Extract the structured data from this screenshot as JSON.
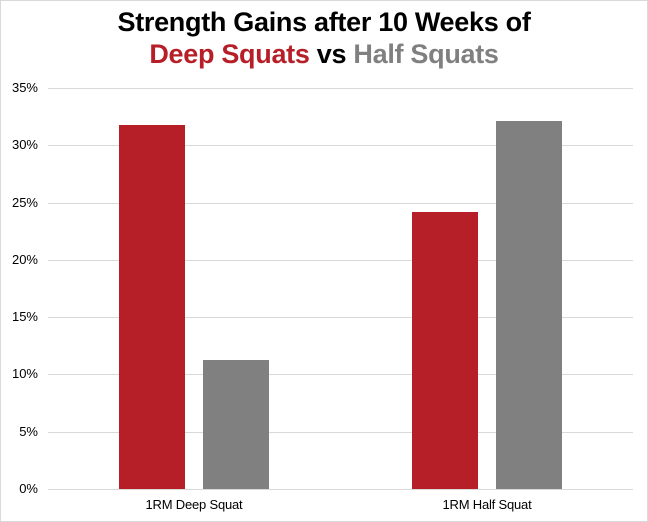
{
  "title": {
    "line1": "Strength Gains after 10 Weeks of",
    "line2_part1": "Deep Squats",
    "line2_part2": " vs ",
    "line2_part3": "Half Squats"
  },
  "colors": {
    "deep": "#b71f28",
    "half": "#808080",
    "grid": "#d9d9d9"
  },
  "y_axis": {
    "ticks": [
      "0%",
      "5%",
      "10%",
      "15%",
      "20%",
      "25%",
      "30%",
      "35%"
    ]
  },
  "x_axis": {
    "categories": [
      "1RM Deep Squat",
      "1RM Half Squat"
    ]
  },
  "chart_data": {
    "type": "bar",
    "title": "Strength Gains after 10 Weeks of Deep Squats vs Half Squats",
    "categories": [
      "1RM Deep Squat",
      "1RM Half Squat"
    ],
    "series": [
      {
        "name": "Deep Squats",
        "color": "#b71f28",
        "values": [
          31.8,
          24.2
        ]
      },
      {
        "name": "Half Squats",
        "color": "#808080",
        "values": [
          11.3,
          32.1
        ]
      }
    ],
    "xlabel": "",
    "ylabel": "",
    "ylim": [
      0,
      35
    ],
    "yticks": [
      0,
      5,
      10,
      15,
      20,
      25,
      30,
      35
    ],
    "ytick_format": "percent",
    "grid": true,
    "legend": "none (encoded by colored title words)"
  }
}
